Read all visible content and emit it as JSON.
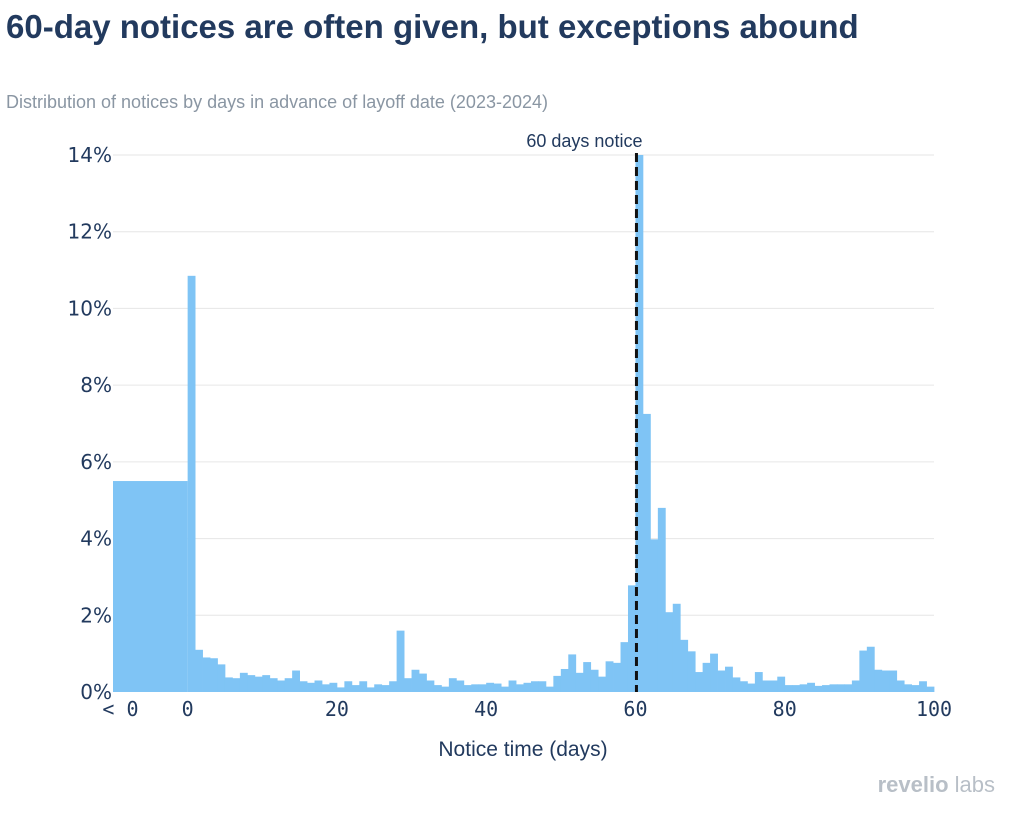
{
  "header": {
    "title": "60-day notices are often given, but exceptions abound",
    "subtitle": "Distribution of notices by days in advance of layoff date (2023-2024)"
  },
  "footer": {
    "logo_main": "revelio",
    "logo_suffix": "labs"
  },
  "colors": {
    "bar": "#7fc4f5",
    "text": "#223a5e",
    "subtitle": "#8a96a3",
    "grid": "#e6e6e6",
    "marker": "#111111"
  },
  "chart_data": {
    "type": "bar",
    "title": "60-day notices are often given, but exceptions abound",
    "subtitle": "Distribution of notices by days in advance of layoff date (2023-2024)",
    "xlabel": "Notice time (days)",
    "ylabel": "",
    "xlim": [
      -10,
      100
    ],
    "ylim": [
      0,
      14
    ],
    "grid": true,
    "x_ticks": [
      {
        "x": -9,
        "label": "< 0"
      },
      {
        "x": 0,
        "label": "0"
      },
      {
        "x": 20,
        "label": "20"
      },
      {
        "x": 40,
        "label": "40"
      },
      {
        "x": 60,
        "label": "60"
      },
      {
        "x": 80,
        "label": "80"
      },
      {
        "x": 100,
        "label": "100"
      }
    ],
    "y_ticks": [
      {
        "y": 0,
        "label": "0%"
      },
      {
        "y": 2,
        "label": "2%"
      },
      {
        "y": 4,
        "label": "4%"
      },
      {
        "y": 6,
        "label": "6%"
      },
      {
        "y": 8,
        "label": "8%"
      },
      {
        "y": 10,
        "label": "10%"
      },
      {
        "y": 12,
        "label": "12%"
      },
      {
        "y": 14,
        "label": "14%"
      }
    ],
    "negative_bin": {
      "label": "< 0",
      "from": -10,
      "to": 0,
      "value": 5.5
    },
    "bin_start": 0,
    "bin_width": 1,
    "values": [
      10.85,
      1.1,
      0.9,
      0.88,
      0.72,
      0.38,
      0.36,
      0.5,
      0.44,
      0.4,
      0.44,
      0.36,
      0.3,
      0.36,
      0.56,
      0.28,
      0.24,
      0.3,
      0.2,
      0.24,
      0.12,
      0.28,
      0.18,
      0.28,
      0.12,
      0.2,
      0.18,
      0.28,
      1.6,
      0.36,
      0.58,
      0.48,
      0.3,
      0.18,
      0.14,
      0.36,
      0.3,
      0.18,
      0.2,
      0.2,
      0.24,
      0.22,
      0.14,
      0.3,
      0.2,
      0.24,
      0.28,
      0.28,
      0.14,
      0.42,
      0.6,
      0.98,
      0.5,
      0.78,
      0.58,
      0.4,
      0.8,
      0.76,
      1.3,
      2.78,
      14.0,
      7.25,
      3.98,
      4.8,
      2.08,
      2.3,
      1.36,
      1.06,
      0.52,
      0.76,
      1.0,
      0.56,
      0.66,
      0.38,
      0.28,
      0.22,
      0.52,
      0.3,
      0.3,
      0.4,
      0.18,
      0.18,
      0.2,
      0.24,
      0.16,
      0.18,
      0.2,
      0.2,
      0.2,
      0.3,
      1.08,
      1.18,
      0.58,
      0.56,
      0.56,
      0.3,
      0.2,
      0.18,
      0.28,
      0.14
    ],
    "annotations": [
      {
        "type": "vline",
        "x": 60,
        "style": "dashed",
        "label": "60 days notice"
      }
    ]
  }
}
